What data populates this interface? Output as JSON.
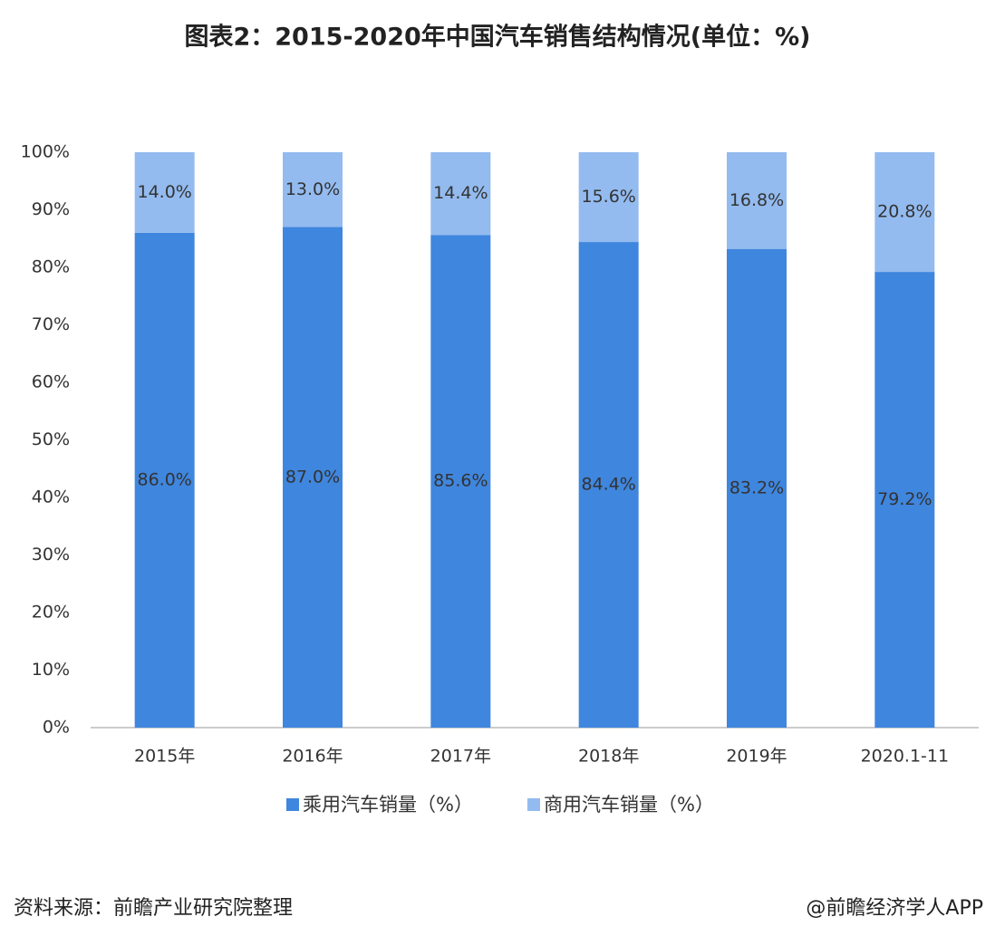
{
  "chart_data": {
    "type": "stacked_bar",
    "title": "图表2：2015-2020年中国汽车销售结构情况(单位：%)",
    "categories": [
      "2015年",
      "2016年",
      "2017年",
      "2018年",
      "2019年",
      "2020.1-11"
    ],
    "series": [
      {
        "name": "乘用汽车销量（%）",
        "color": "#3f86de",
        "values": [
          86.0,
          87.0,
          85.6,
          84.4,
          83.2,
          79.2
        ],
        "value_labels": [
          "86.0%",
          "87.0%",
          "85.6%",
          "84.4%",
          "83.2%",
          "79.2%"
        ]
      },
      {
        "name": "商用汽车销量（%）",
        "color": "#93bbef",
        "values": [
          14.0,
          13.0,
          14.4,
          15.6,
          16.8,
          20.8
        ],
        "value_labels": [
          "14.0%",
          "13.0%",
          "14.4%",
          "15.6%",
          "16.8%",
          "20.8%"
        ]
      }
    ],
    "ylim": [
      0,
      100
    ],
    "yticks": [
      {
        "value": 0,
        "label": "0%"
      },
      {
        "value": 10,
        "label": "10%"
      },
      {
        "value": 20,
        "label": "20%"
      },
      {
        "value": 30,
        "label": "30%"
      },
      {
        "value": 40,
        "label": "40%"
      },
      {
        "value": 50,
        "label": "50%"
      },
      {
        "value": 60,
        "label": "60%"
      },
      {
        "value": 70,
        "label": "70%"
      },
      {
        "value": 80,
        "label": "80%"
      },
      {
        "value": 90,
        "label": "90%"
      },
      {
        "value": 100,
        "label": "100%"
      }
    ],
    "grid": false,
    "legend": "bottom",
    "source": "资料来源：前瞻产业研究院整理",
    "credit": "@前瞻经济学人APP"
  }
}
